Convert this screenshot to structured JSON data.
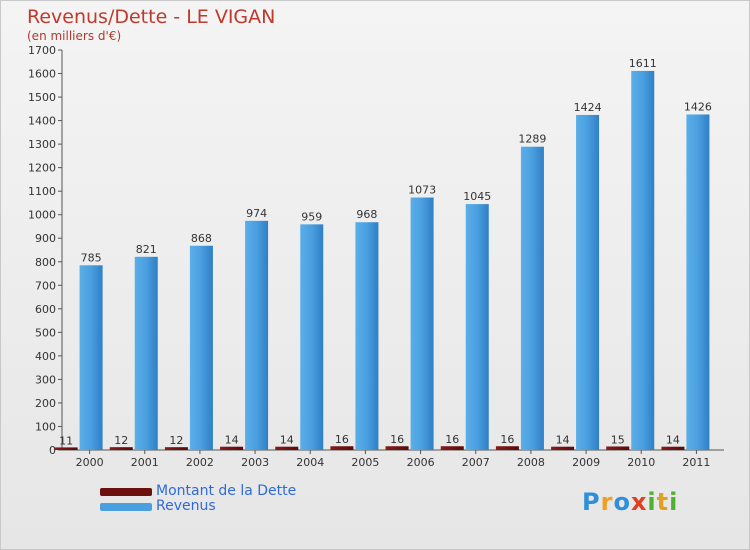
{
  "header": {
    "title": "Revenus/Dette - LE VIGAN",
    "subtitle": "(en milliers d'€)"
  },
  "legend": {
    "items": [
      {
        "label": "Montant de la Dette",
        "color": "#6b0f0f"
      },
      {
        "label": "Revenus",
        "color": "#4a9fe0"
      }
    ]
  },
  "logo": {
    "letters": [
      "P",
      "r",
      "o",
      "x",
      "i",
      "t",
      "i"
    ],
    "colors": [
      "#2f8fd8",
      "#f0a020",
      "#2f8fd8",
      "#e04020",
      "#50b030",
      "#e0a020",
      "#50b030"
    ]
  },
  "chart_data": {
    "type": "bar",
    "title": "Revenus/Dette - LE VIGAN",
    "subtitle": "(en milliers d'€)",
    "xlabel": "",
    "ylabel": "",
    "ylim": [
      0,
      1700
    ],
    "yticks": [
      0,
      100,
      200,
      300,
      400,
      500,
      600,
      700,
      800,
      900,
      1000,
      1100,
      1200,
      1300,
      1400,
      1500,
      1600,
      1700
    ],
    "categories": [
      "2000",
      "2001",
      "2002",
      "2003",
      "2004",
      "2005",
      "2006",
      "2007",
      "2008",
      "2009",
      "2010",
      "2011"
    ],
    "series": [
      {
        "name": "Montant de la Dette",
        "color": "#6b0f0f",
        "values": [
          11,
          12,
          12,
          14,
          14,
          16,
          16,
          16,
          16,
          14,
          15,
          14
        ]
      },
      {
        "name": "Revenus",
        "color": "#4a9fe0",
        "values": [
          785,
          821,
          868,
          974,
          959,
          968,
          1073,
          1045,
          1289,
          1424,
          1611,
          1426
        ]
      }
    ],
    "grid": false,
    "legend_position": "bottom-left"
  }
}
